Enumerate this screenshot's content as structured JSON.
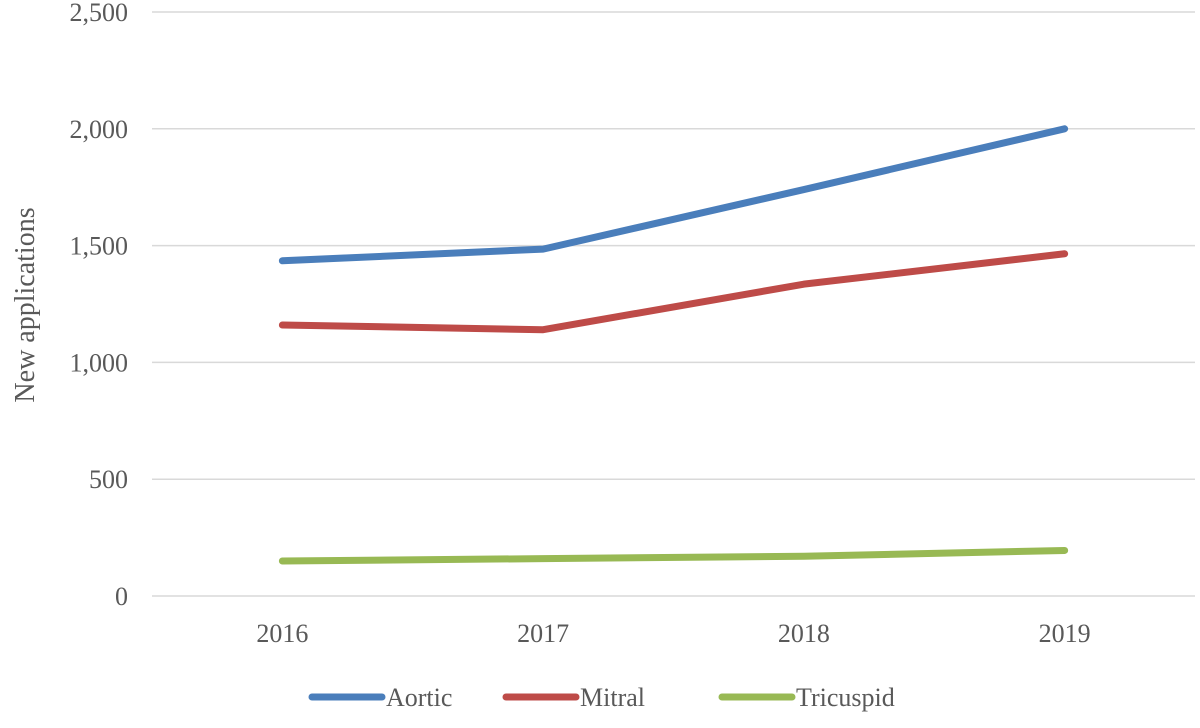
{
  "chart_data": {
    "type": "line",
    "title": "",
    "xlabel": "",
    "ylabel": "New applications",
    "categories": [
      "2016",
      "2017",
      "2018",
      "2019"
    ],
    "ylim": [
      0,
      2500
    ],
    "yticks": [
      0,
      500,
      1000,
      1500,
      2000,
      2500
    ],
    "ytick_labels": [
      "0",
      "500",
      "1,000",
      "1,500",
      "2,000",
      "2,500"
    ],
    "grid": true,
    "legend_position": "bottom",
    "series": [
      {
        "name": "Aortic",
        "color": "#4a7ebb",
        "values": [
          1435,
          1485,
          1740,
          2000
        ]
      },
      {
        "name": "Mitral",
        "color": "#be4b48",
        "values": [
          1160,
          1140,
          1335,
          1465
        ]
      },
      {
        "name": "Tricuspid",
        "color": "#98b954",
        "values": [
          150,
          160,
          170,
          195
        ]
      }
    ]
  }
}
